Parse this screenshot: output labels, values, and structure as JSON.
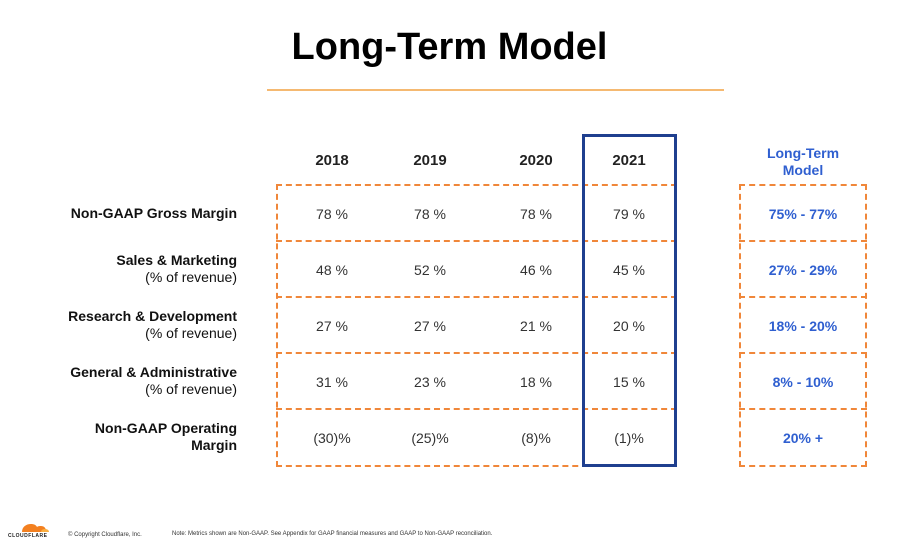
{
  "title": "Long-Term Model",
  "columns": [
    "2018",
    "2019",
    "2020",
    "2021"
  ],
  "long_term_header_line1": "Long-Term",
  "long_term_header_line2": "Model",
  "rows": [
    {
      "label": "Non-GAAP Gross Margin",
      "sublabel": "",
      "values": [
        "78 %",
        "78 %",
        "78 %",
        "79 %"
      ],
      "long_term": "75% - 77%"
    },
    {
      "label": "Sales & Marketing",
      "sublabel": "(% of revenue)",
      "values": [
        "48 %",
        "52 %",
        "46 %",
        "45 %"
      ],
      "long_term": "27% - 29%"
    },
    {
      "label": "Research & Development",
      "sublabel": "(% of revenue)",
      "values": [
        "27 %",
        "27 %",
        "21 %",
        "20 %"
      ],
      "long_term": "18% - 20%"
    },
    {
      "label": "General & Administrative",
      "sublabel": "(% of revenue)",
      "values": [
        "31 %",
        "23 %",
        "18 %",
        "15 %"
      ],
      "long_term": "8% - 10%"
    },
    {
      "label": "Non-GAAP Operating",
      "sublabel": "Margin",
      "values": [
        "(30)%",
        "(25)%",
        "(8)%",
        "(1)%"
      ],
      "long_term": "20% +"
    }
  ],
  "footer": {
    "brand": "CLOUDFLARE",
    "copyright": "© Copyright Cloudflare, Inc.",
    "note": "Note: Metrics shown are Non-GAAP. See Appendix for GAAP financial measures and GAAP to Non-GAAP reconciliation."
  },
  "colors": {
    "accent_blue": "#2f5fd0",
    "highlight_border": "#1f3f8f",
    "dash_orange": "#f0873a",
    "rule_orange": "#f5b971"
  }
}
